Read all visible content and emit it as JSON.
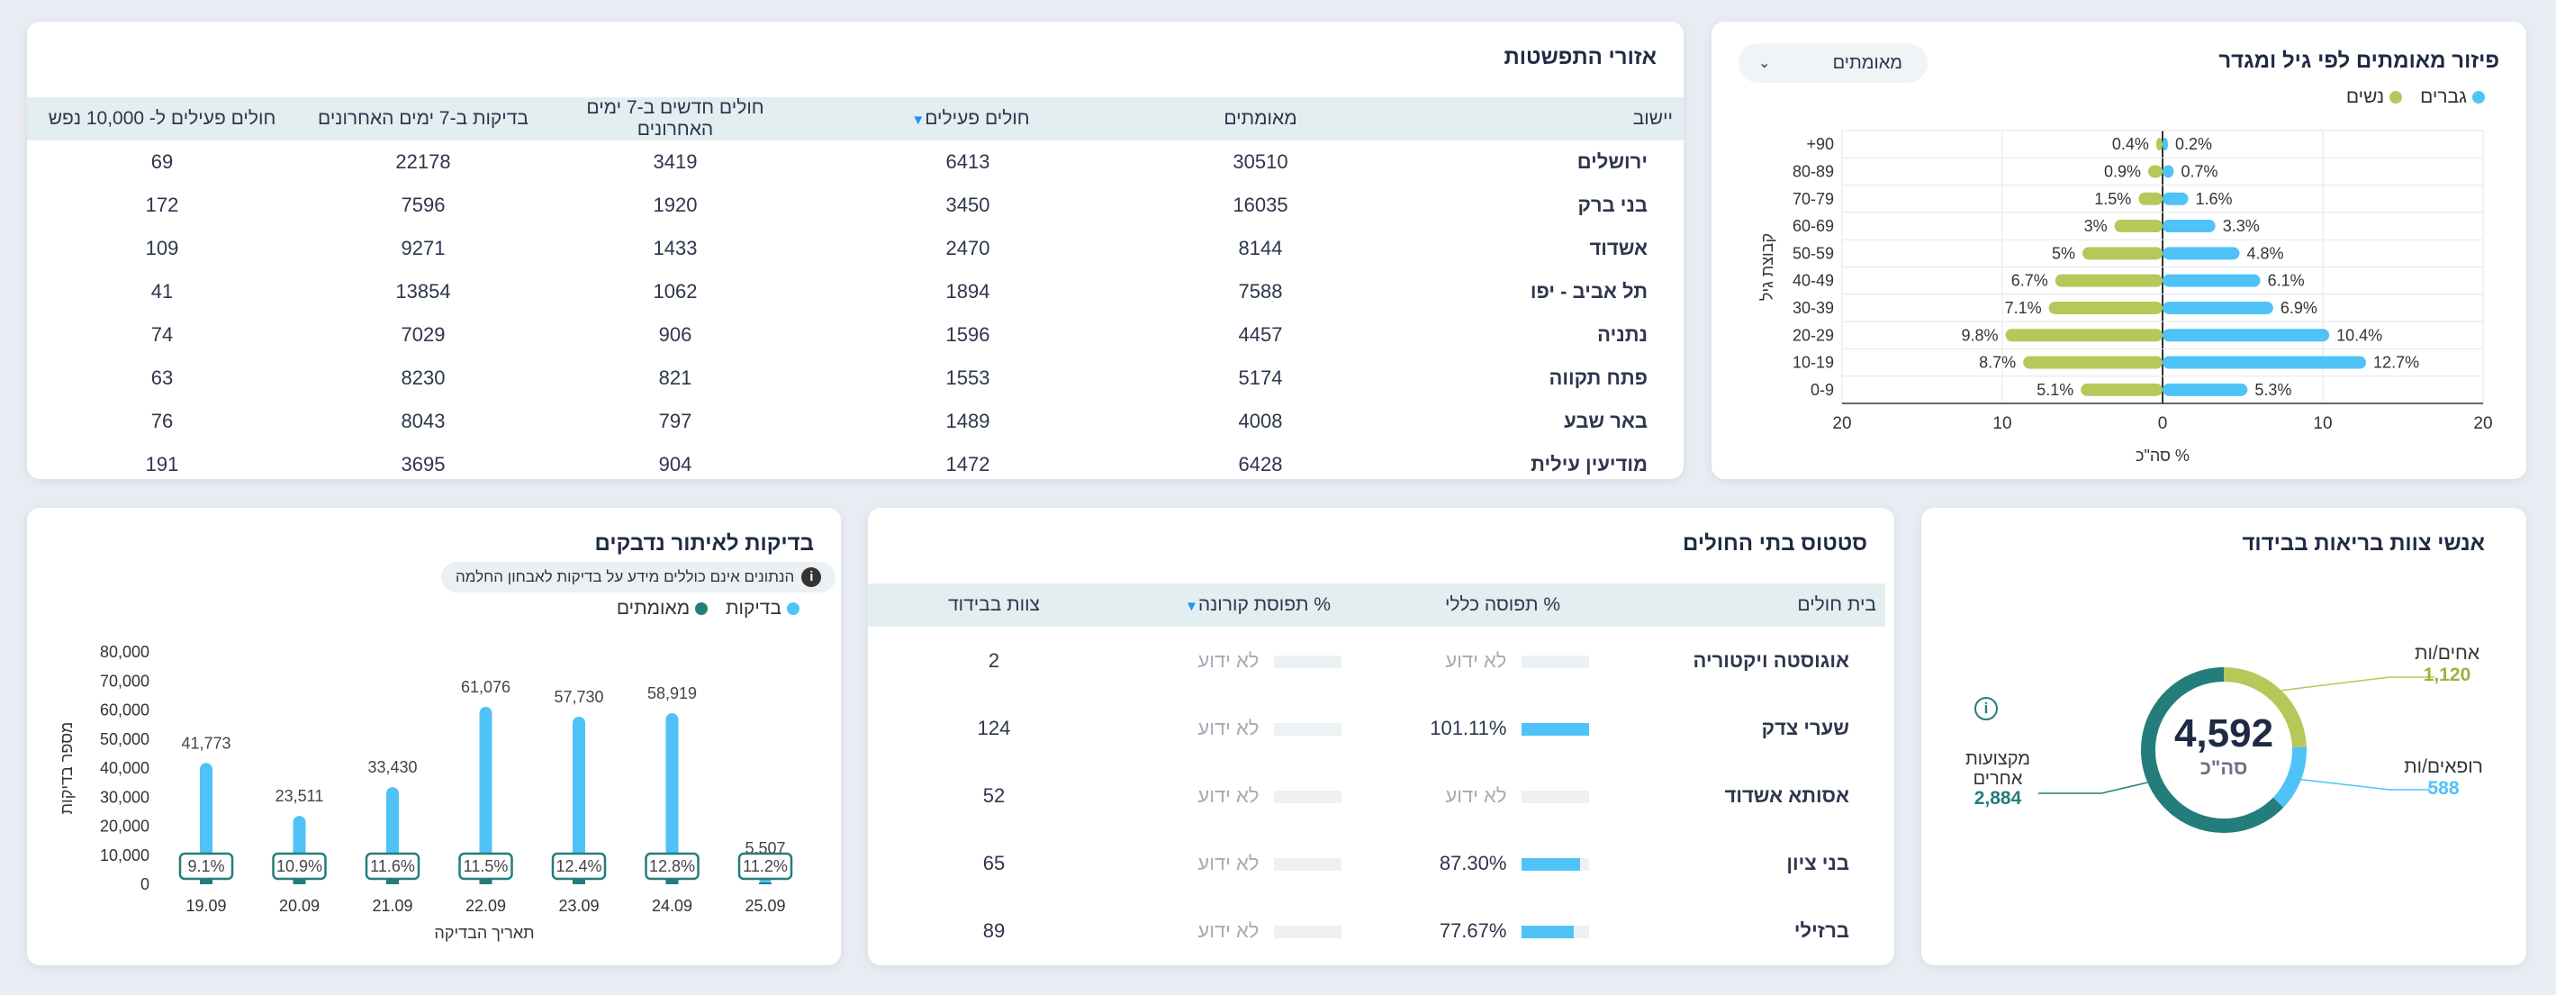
{
  "cards": {
    "spread": {
      "title": "אזורי התפשטות"
    },
    "age": {
      "title": "פיזור מאומתים לפי גיל ומגדר",
      "dropdown_value": "מאומתים",
      "legend_male": "גברים",
      "legend_female": "נשים"
    },
    "hospitals": {
      "title": "סטטוס בתי החולים"
    },
    "tests": {
      "title": "בדיקות לאיתור נדבקים",
      "note": "הנתונים אינם כוללים מידע על בדיקות לאבחון החלמה",
      "legend_tests": "בדיקות",
      "legend_confirmed": "מאומתים"
    },
    "staff": {
      "title": "אנשי צוות בריאות בבידוד"
    }
  },
  "spread_table": {
    "headers": [
      "יישוב",
      "מאומתים",
      "חולים פעילים",
      "חולים חדשים ב-7 ימים האחרונים",
      "בדיקות ב-7 ימים האחרונים",
      "חולים פעילים ל- 10,000 נפש"
    ],
    "rows": [
      [
        "ירושלים",
        "30510",
        "6413",
        "3419",
        "22178",
        "69"
      ],
      [
        "בני ברק",
        "16035",
        "3450",
        "1920",
        "7596",
        "172"
      ],
      [
        "אשדוד",
        "8144",
        "2470",
        "1433",
        "9271",
        "109"
      ],
      [
        "תל אביב - יפו",
        "7588",
        "1894",
        "1062",
        "13854",
        "41"
      ],
      [
        "נתניה",
        "4457",
        "1596",
        "906",
        "7029",
        "74"
      ],
      [
        "פתח תקווה",
        "5174",
        "1553",
        "821",
        "8230",
        "63"
      ],
      [
        "באר שבע",
        "4008",
        "1489",
        "797",
        "8043",
        "76"
      ],
      [
        "מודיעין עילית",
        "6428",
        "1472",
        "904",
        "3695",
        "191"
      ]
    ]
  },
  "hospital_table": {
    "headers": [
      "בית חולים",
      "% תפוסה כללי",
      "% תפוסת קורונה",
      "צוות בבידוד"
    ],
    "rows": [
      {
        "name": "אוגוסטה ויקטוריה",
        "general": "לא ידוע",
        "general_fill": 0,
        "corona": "לא ידוע",
        "staff": "2"
      },
      {
        "name": "שערי צדק",
        "general": "101.11%",
        "general_fill": 1.0,
        "corona": "לא ידוע",
        "staff": "124"
      },
      {
        "name": "אסותא אשדוד",
        "general": "לא ידוע",
        "general_fill": 0,
        "corona": "לא ידוע",
        "staff": "52"
      },
      {
        "name": "בני ציון",
        "general": "87.30%",
        "general_fill": 0.873,
        "corona": "לא ידוע",
        "staff": "65"
      },
      {
        "name": "ברזילי",
        "general": "77.67%",
        "general_fill": 0.7767,
        "corona": "לא ידוע",
        "staff": "89"
      }
    ]
  },
  "staff": {
    "total": "4,592",
    "total_label": "סה\"כ",
    "nurses_label": "אחים/ות",
    "nurses_value": "1,120",
    "doctors_label": "רופאים/ות",
    "doctors_value": "588",
    "other_label_1": "מקצועות",
    "other_label_2": "אחרים",
    "other_value": "2,884"
  },
  "colors": {
    "male": "#4fc3f7",
    "female": "#b5c95a",
    "teal": "#237d7b"
  },
  "chart_data": [
    {
      "type": "bar",
      "orientation": "horizontal",
      "title": "פיזור מאומתים לפי גיל ומגדר",
      "xlabel": "% סה\"כ",
      "ylabel": "קבוצת גיל",
      "xlim": [
        -20,
        20
      ],
      "xticks": [
        "20",
        "10",
        "0",
        "10",
        "20"
      ],
      "categories": [
        "+90",
        "80-89",
        "70-79",
        "60-69",
        "50-59",
        "40-49",
        "30-39",
        "20-29",
        "10-19",
        "0-9"
      ],
      "series": [
        {
          "name": "נשים",
          "values": [
            0.4,
            0.9,
            1.5,
            3,
            5,
            6.7,
            7.1,
            9.8,
            8.7,
            5.1
          ],
          "labels": [
            "0.4%",
            "0.9%",
            "1.5%",
            "3%",
            "5%",
            "6.7%",
            "7.1%",
            "9.8%",
            "8.7%",
            "5.1%"
          ]
        },
        {
          "name": "גברים",
          "values": [
            0.2,
            0.7,
            1.6,
            3.3,
            4.8,
            6.1,
            6.9,
            10.4,
            12.7,
            5.3
          ],
          "labels": [
            "0.2%",
            "0.7%",
            "1.6%",
            "3.3%",
            "4.8%",
            "6.1%",
            "6.9%",
            "10.4%",
            "12.7%",
            "5.3%"
          ]
        }
      ],
      "grid": true,
      "legend": "top-right"
    },
    {
      "type": "bar",
      "title": "בדיקות לאיתור נדבקים",
      "xlabel": "תאריך הבדיקה",
      "ylabel": "מספר בדיקות",
      "ylim": [
        0,
        80000
      ],
      "yticks": [
        "80,000",
        "70,000",
        "60,000",
        "50,000",
        "40,000",
        "30,000",
        "20,000",
        "10,000",
        "0"
      ],
      "categories": [
        "19.09",
        "20.09",
        "21.09",
        "22.09",
        "23.09",
        "24.09",
        "25.09"
      ],
      "series": [
        {
          "name": "בדיקות",
          "values": [
            41773,
            23511,
            33430,
            61076,
            57730,
            58919,
            5507
          ],
          "labels": [
            "41,773",
            "23,511",
            "33,430",
            "61,076",
            "57,730",
            "58,919",
            "5,507"
          ]
        },
        {
          "name": "מאומתים",
          "values": [
            3813,
            2563,
            3865,
            7016,
            7178,
            7551,
            617
          ]
        }
      ],
      "percent_labels": [
        "9.1%",
        "10.9%",
        "11.6%",
        "11.5%",
        "12.4%",
        "12.8%",
        "11.2%"
      ],
      "legend": "top-right"
    },
    {
      "type": "pie",
      "title": "אנשי צוות בריאות בבידוד",
      "categories": [
        "אחים/ות",
        "רופאים/ות",
        "מקצועות אחרים"
      ],
      "values": [
        1120,
        588,
        2884
      ],
      "total": 4592
    }
  ]
}
